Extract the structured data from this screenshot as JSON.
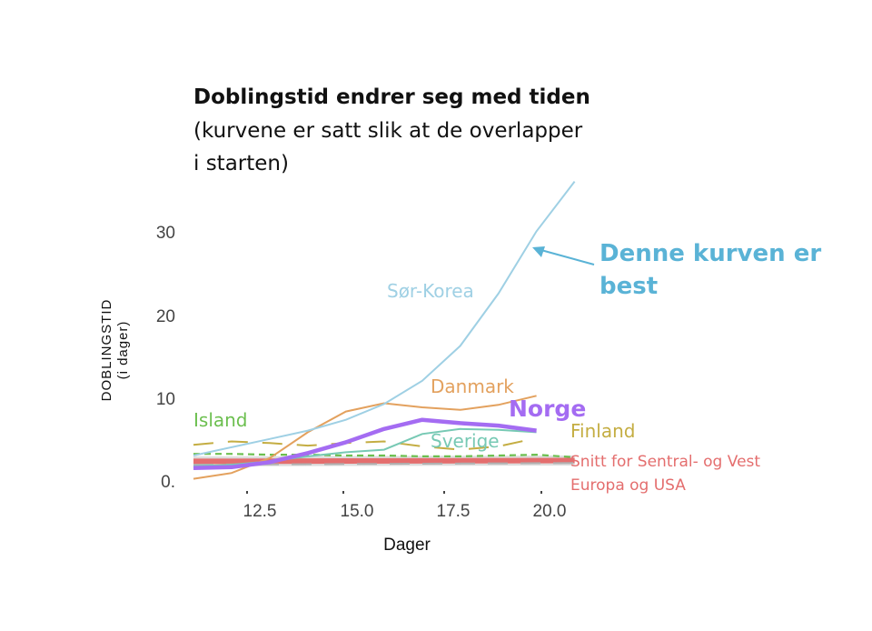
{
  "colors": {
    "korea": "#9fd0e4",
    "danmark": "#e3a15e",
    "norge": "#a46cf2",
    "island": "#6cbf4f",
    "sverige": "#77c9b4",
    "finland": "#c4ad42",
    "average": "#e46e6e",
    "average_band": "#cfcfcf",
    "annotation": "#5ab3d6",
    "dashed_gray": "#b0b0b0"
  },
  "chart_data": {
    "type": "line",
    "title": "Doblingstid endrer seg med tiden",
    "subtitle_lines": [
      "(kurvene er satt slik at de overlapper",
      "i starten)"
    ],
    "xlabel": "Dager",
    "ylabel_lines": [
      "DOBLINGSTID",
      "(i dager)"
    ],
    "xlim": [
      11,
      21.2
    ],
    "ylim": [
      0,
      37
    ],
    "x_ticks": [
      12.5,
      15.0,
      17.5,
      20.0
    ],
    "x_tick_labels": [
      "12.5",
      "15.0",
      "17.5",
      "20.0"
    ],
    "y_ticks": [
      0,
      10,
      20,
      30
    ],
    "y_tick_labels": [
      "0.",
      "10",
      "20",
      "30"
    ],
    "series": [
      {
        "name": "Sør-Korea",
        "label": "Sør-Korea",
        "color_key": "korea",
        "x": [
          11,
          12,
          13,
          14,
          15,
          16,
          17,
          18,
          19,
          20,
          21
        ],
        "y": [
          3.5,
          4.5,
          5.5,
          6.5,
          7.8,
          9.7,
          12.5,
          16.7,
          23.0,
          30.5,
          36.5
        ]
      },
      {
        "name": "Danmark",
        "label": "Danmark",
        "color_key": "danmark",
        "x": [
          11,
          12,
          13,
          14,
          15,
          16,
          17,
          18,
          19,
          20
        ],
        "y": [
          0.7,
          1.4,
          3.2,
          6.3,
          8.8,
          9.8,
          9.3,
          9.0,
          9.6,
          10.7
        ]
      },
      {
        "name": "Norge",
        "label": "Norge",
        "color_key": "norge",
        "x": [
          11,
          12,
          13,
          14,
          15,
          16,
          17,
          18,
          19,
          20
        ],
        "y": [
          2.0,
          2.1,
          2.7,
          3.8,
          5.1,
          6.7,
          7.8,
          7.4,
          7.1,
          6.5
        ]
      },
      {
        "name": "Sverige",
        "label": "Sverige",
        "color_key": "sverige",
        "x": [
          11,
          12,
          13,
          14,
          15,
          16,
          17,
          18,
          19,
          20
        ],
        "y": [
          2.2,
          2.4,
          2.8,
          3.4,
          3.9,
          4.2,
          6.1,
          6.7,
          6.6,
          6.3
        ]
      },
      {
        "name": "Finland",
        "label": "Finland",
        "color_key": "finland",
        "x": [
          11,
          12,
          13,
          14,
          15,
          16,
          17,
          18,
          19,
          20
        ],
        "y": [
          4.8,
          5.2,
          5.0,
          4.7,
          5.0,
          5.2,
          4.6,
          4.2,
          4.6,
          5.6
        ]
      },
      {
        "name": "Island",
        "label": "Island",
        "color_key": "island",
        "x": [
          11,
          12,
          13,
          14,
          15,
          16,
          17,
          18,
          19,
          20,
          21
        ],
        "y": [
          3.7,
          3.7,
          3.6,
          3.6,
          3.5,
          3.5,
          3.4,
          3.4,
          3.5,
          3.6,
          3.3
        ]
      },
      {
        "name": "Snitt for Sentral- og Vest Europa og USA",
        "color_key": "average",
        "x": [
          11,
          21
        ],
        "y": [
          2.8,
          2.9
        ]
      }
    ],
    "annotation": {
      "lines": [
        "Denne kurven er",
        "best"
      ],
      "points_to": "Sør-Korea"
    },
    "average_label_lines": [
      "Snitt for Sentral- og Vest",
      "Europa og USA"
    ]
  }
}
